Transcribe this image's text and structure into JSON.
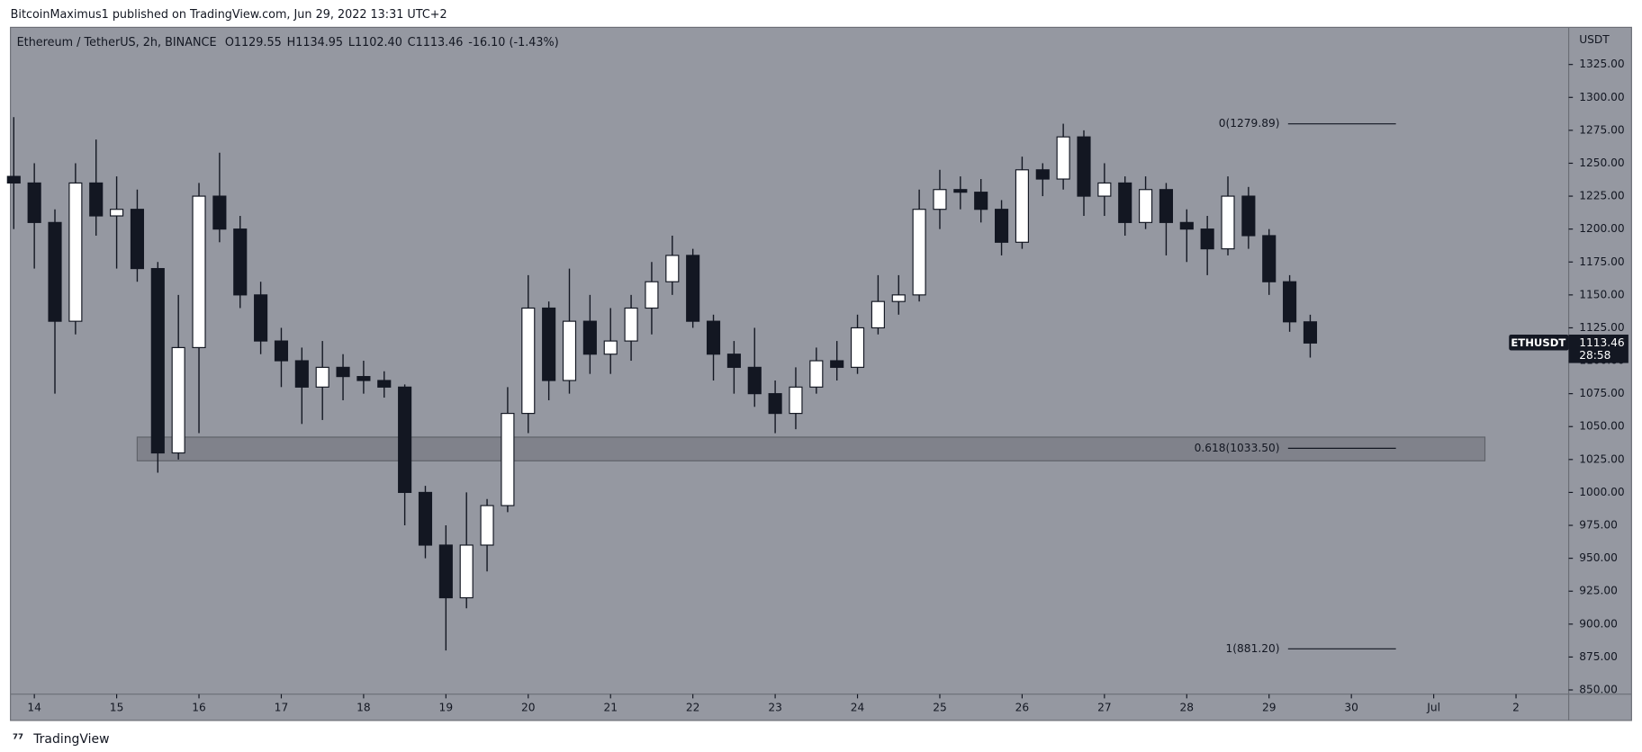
{
  "header": {
    "publisher": "BitcoinMaximus1 published on TradingView.com, Jun 29, 2022 13:31 UTC+2"
  },
  "footer": {
    "logo": "TradingView"
  },
  "chart_data": {
    "type": "candlestick",
    "symbol_title": "Ethereum / TetherUS, 2h, BINANCE",
    "ohlc_legend": {
      "labels": [
        "O",
        "H",
        "L",
        "C"
      ],
      "values": [
        "1129.55",
        "1134.95",
        "1102.40",
        "1113.46"
      ],
      "change": "-16.10 (-1.43%)"
    },
    "y_axis_title": "USDT",
    "price_tag": {
      "symbol": "ETHUSDT",
      "price": "1113.46",
      "countdown": "28:58"
    },
    "x": [
      13.75,
      14,
      14.25,
      14.5,
      14.75,
      15,
      15.25,
      15.5,
      15.75,
      16,
      16.25,
      16.5,
      16.75,
      17,
      17.25,
      17.5,
      17.75,
      18,
      18.25,
      18.5,
      18.75,
      19,
      19.25,
      19.5,
      19.75,
      20,
      20.25,
      20.5,
      20.75,
      21,
      21.25,
      21.5,
      21.75,
      22,
      22.25,
      22.5,
      22.75,
      23,
      23.25,
      23.5,
      23.75,
      24,
      24.25,
      24.5,
      24.75,
      25,
      25.25,
      25.5,
      25.75,
      26,
      26.25,
      26.5,
      26.75,
      27,
      27.25,
      27.5,
      27.75,
      28,
      28.25,
      28.5,
      28.75,
      29,
      29.25,
      29.5
    ],
    "open": [
      1240,
      1235,
      1205,
      1130,
      1235,
      1210,
      1215,
      1170,
      1030,
      1110,
      1225,
      1200,
      1150,
      1115,
      1100,
      1080,
      1095,
      1088,
      1085,
      1080,
      1000,
      960,
      920,
      960,
      990,
      1060,
      1140,
      1085,
      1130,
      1105,
      1115,
      1140,
      1160,
      1180,
      1130,
      1105,
      1095,
      1075,
      1060,
      1080,
      1100,
      1095,
      1125,
      1145,
      1150,
      1215,
      1230,
      1228,
      1215,
      1190,
      1245,
      1238,
      1270,
      1225,
      1235,
      1205,
      1230,
      1205,
      1200,
      1185,
      1225,
      1195,
      1160,
      1129.55
    ],
    "high": [
      1285,
      1250,
      1215,
      1250,
      1268,
      1240,
      1230,
      1175,
      1150,
      1235,
      1258,
      1210,
      1160,
      1125,
      1110,
      1115,
      1105,
      1100,
      1092,
      1082,
      1005,
      975,
      1000,
      995,
      1080,
      1165,
      1145,
      1170,
      1150,
      1140,
      1150,
      1175,
      1195,
      1185,
      1135,
      1115,
      1125,
      1085,
      1095,
      1110,
      1115,
      1135,
      1165,
      1165,
      1230,
      1245,
      1240,
      1238,
      1222,
      1255,
      1250,
      1280,
      1275,
      1250,
      1240,
      1240,
      1235,
      1215,
      1210,
      1240,
      1232,
      1200,
      1165,
      1134.95
    ],
    "low": [
      1200,
      1170,
      1075,
      1120,
      1195,
      1170,
      1160,
      1015,
      1025,
      1045,
      1190,
      1140,
      1105,
      1080,
      1052,
      1055,
      1070,
      1075,
      1072,
      975,
      950,
      880,
      912,
      940,
      985,
      1045,
      1070,
      1075,
      1090,
      1090,
      1100,
      1120,
      1150,
      1125,
      1085,
      1075,
      1065,
      1045,
      1048,
      1075,
      1085,
      1090,
      1120,
      1135,
      1145,
      1200,
      1215,
      1205,
      1180,
      1185,
      1225,
      1230,
      1210,
      1210,
      1195,
      1200,
      1180,
      1175,
      1165,
      1180,
      1185,
      1150,
      1122,
      1102.4
    ],
    "close": [
      1235,
      1205,
      1130,
      1235,
      1210,
      1215,
      1170,
      1030,
      1110,
      1225,
      1200,
      1150,
      1115,
      1100,
      1080,
      1095,
      1088,
      1085,
      1080,
      1000,
      960,
      920,
      960,
      990,
      1060,
      1140,
      1085,
      1130,
      1105,
      1115,
      1140,
      1160,
      1180,
      1130,
      1105,
      1095,
      1075,
      1060,
      1080,
      1100,
      1095,
      1125,
      1145,
      1150,
      1215,
      1230,
      1228,
      1215,
      1190,
      1245,
      1238,
      1270,
      1225,
      1235,
      1205,
      1230,
      1205,
      1200,
      1185,
      1225,
      1195,
      1160,
      1129.55,
      1113.46
    ],
    "up_color": "#ffffff",
    "down_color": "#131722",
    "xlim": [
      13.71,
      32.64
    ],
    "xticks": [
      14,
      15,
      16,
      17,
      18,
      19,
      20,
      21,
      22,
      23,
      24,
      25,
      26,
      27,
      28,
      29,
      30,
      {
        "value": 31,
        "label": "Jul"
      },
      {
        "value": 32,
        "label": "2"
      }
    ],
    "ylim": [
      846.8,
      1353.2
    ],
    "yticks": [
      {
        "value": 850,
        "label": "850.00"
      },
      {
        "value": 875,
        "label": "875.00"
      },
      {
        "value": 900,
        "label": "900.00"
      },
      {
        "value": 925,
        "label": "925.00"
      },
      {
        "value": 950,
        "label": "950.00"
      },
      {
        "value": 975,
        "label": "975.00"
      },
      {
        "value": 1000,
        "label": "1000.00"
      },
      {
        "value": 1025,
        "label": "1025.00"
      },
      {
        "value": 1050,
        "label": "1050.00"
      },
      {
        "value": 1075,
        "label": "1075.00"
      },
      {
        "value": 1100,
        "label": "1100.00"
      },
      {
        "value": 1125,
        "label": "1125.00"
      },
      {
        "value": 1150,
        "label": "1150.00"
      },
      {
        "value": 1175,
        "label": "1175.00"
      },
      {
        "value": 1200,
        "label": "1200.00"
      },
      {
        "value": 1225,
        "label": "1225.00"
      },
      {
        "value": 1250,
        "label": "1250.00"
      },
      {
        "value": 1275,
        "label": "1275.00"
      },
      {
        "value": 1300,
        "label": "1300.00"
      },
      {
        "value": 1325,
        "label": "1325.00"
      }
    ],
    "fib_levels": [
      {
        "value": 1279.89,
        "label": "0(1279.89)"
      },
      {
        "value": 1033.5,
        "label": "0.618(1033.50)"
      },
      {
        "value": 881.2,
        "label": "1(881.20)"
      }
    ],
    "support_zone": [
      1024,
      1042
    ]
  }
}
